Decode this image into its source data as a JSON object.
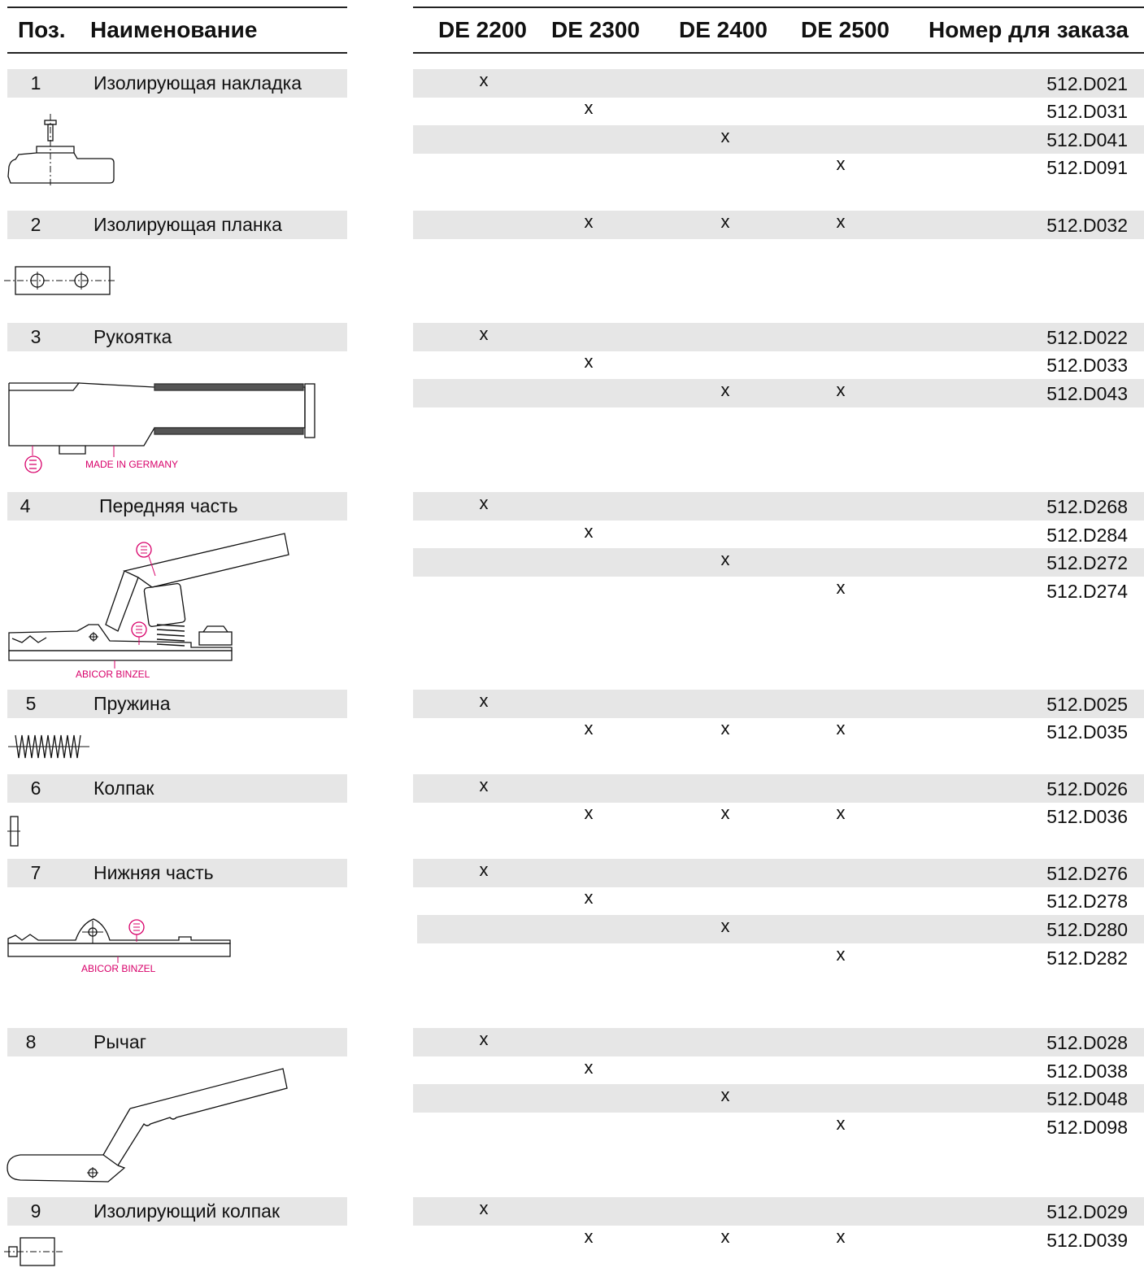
{
  "header": {
    "pos": "Поз.",
    "name": "Наименование",
    "col1": "DE 2200",
    "col2": "DE 2300",
    "col3": "DE 2400",
    "col4": "DE 2500",
    "order": "Номер для заказа"
  },
  "parts": [
    {
      "pos": "1",
      "name": "Изолирующая накладка",
      "icon": "insulating-pad-drawing"
    },
    {
      "pos": "2",
      "name": "Изолирующая планка",
      "icon": "insulating-strip-drawing"
    },
    {
      "pos": "3",
      "name": "Рукоятка",
      "icon": "handle-drawing",
      "label": "MADE IN GERMANY"
    },
    {
      "pos": "4",
      "name": "Передняя часть",
      "icon": "front-part-drawing",
      "label": "ABICOR BINZEL"
    },
    {
      "pos": "5",
      "name": "Пружина",
      "icon": "spring-drawing"
    },
    {
      "pos": "6",
      "name": "Колпак",
      "icon": "cap-drawing"
    },
    {
      "pos": "7",
      "name": "Нижняя часть",
      "icon": "lower-part-drawing",
      "label": "ABICOR BINZEL"
    },
    {
      "pos": "8",
      "name": "Рычаг",
      "icon": "lever-drawing"
    },
    {
      "pos": "9",
      "name": "Изолирующий колпак",
      "icon": "insulating-cap-drawing"
    }
  ],
  "mark_symbol": "x",
  "order_rows": [
    {
      "part": "1",
      "order": "512.D021",
      "marks": [
        true,
        false,
        false,
        false
      ],
      "shaded": true
    },
    {
      "part": "1",
      "order": "512.D031",
      "marks": [
        false,
        true,
        false,
        false
      ],
      "shaded": false
    },
    {
      "part": "1",
      "order": "512.D041",
      "marks": [
        false,
        false,
        true,
        false
      ],
      "shaded": true
    },
    {
      "part": "1",
      "order": "512.D091",
      "marks": [
        false,
        false,
        false,
        true
      ],
      "shaded": false
    },
    {
      "part": "2",
      "order": "512.D032",
      "marks": [
        false,
        true,
        true,
        true
      ],
      "shaded": true
    },
    {
      "part": "3",
      "order": "512.D022",
      "marks": [
        true,
        false,
        false,
        false
      ],
      "shaded": true
    },
    {
      "part": "3",
      "order": "512.D033",
      "marks": [
        false,
        true,
        false,
        false
      ],
      "shaded": false
    },
    {
      "part": "3",
      "order": "512.D043",
      "marks": [
        false,
        false,
        true,
        true
      ],
      "shaded": true
    },
    {
      "part": "4",
      "order": "512.D268",
      "marks": [
        true,
        false,
        false,
        false
      ],
      "shaded": true
    },
    {
      "part": "4",
      "order": "512.D284",
      "marks": [
        false,
        true,
        false,
        false
      ],
      "shaded": false
    },
    {
      "part": "4",
      "order": "512.D272",
      "marks": [
        false,
        false,
        true,
        false
      ],
      "shaded": true
    },
    {
      "part": "4",
      "order": "512.D274",
      "marks": [
        false,
        false,
        false,
        true
      ],
      "shaded": false
    },
    {
      "part": "5",
      "order": "512.D025",
      "marks": [
        true,
        false,
        false,
        false
      ],
      "shaded": true
    },
    {
      "part": "5",
      "order": "512.D035",
      "marks": [
        false,
        true,
        true,
        true
      ],
      "shaded": false
    },
    {
      "part": "6",
      "order": "512.D026",
      "marks": [
        true,
        false,
        false,
        false
      ],
      "shaded": true
    },
    {
      "part": "6",
      "order": "512.D036",
      "marks": [
        false,
        true,
        true,
        true
      ],
      "shaded": false
    },
    {
      "part": "7",
      "order": "512.D276",
      "marks": [
        true,
        false,
        false,
        false
      ],
      "shaded": true
    },
    {
      "part": "7",
      "order": "512.D278",
      "marks": [
        false,
        true,
        false,
        false
      ],
      "shaded": false
    },
    {
      "part": "7",
      "order": "512.D280",
      "marks": [
        false,
        false,
        true,
        false
      ],
      "shaded": true
    },
    {
      "part": "7",
      "order": "512.D282",
      "marks": [
        false,
        false,
        false,
        true
      ],
      "shaded": false
    },
    {
      "part": "8",
      "order": "512.D028",
      "marks": [
        true,
        false,
        false,
        false
      ],
      "shaded": true
    },
    {
      "part": "8",
      "order": "512.D038",
      "marks": [
        false,
        true,
        false,
        false
      ],
      "shaded": false
    },
    {
      "part": "8",
      "order": "512.D048",
      "marks": [
        false,
        false,
        true,
        false
      ],
      "shaded": true
    },
    {
      "part": "8",
      "order": "512.D098",
      "marks": [
        false,
        false,
        false,
        true
      ],
      "shaded": false
    },
    {
      "part": "9",
      "order": "512.D029",
      "marks": [
        true,
        false,
        false,
        false
      ],
      "shaded": true
    },
    {
      "part": "9",
      "order": "512.D039",
      "marks": [
        false,
        true,
        true,
        true
      ],
      "shaded": false
    }
  ],
  "colors": {
    "band": "#e6e6e6",
    "rule": "#222222",
    "accent": "#d8006a"
  }
}
